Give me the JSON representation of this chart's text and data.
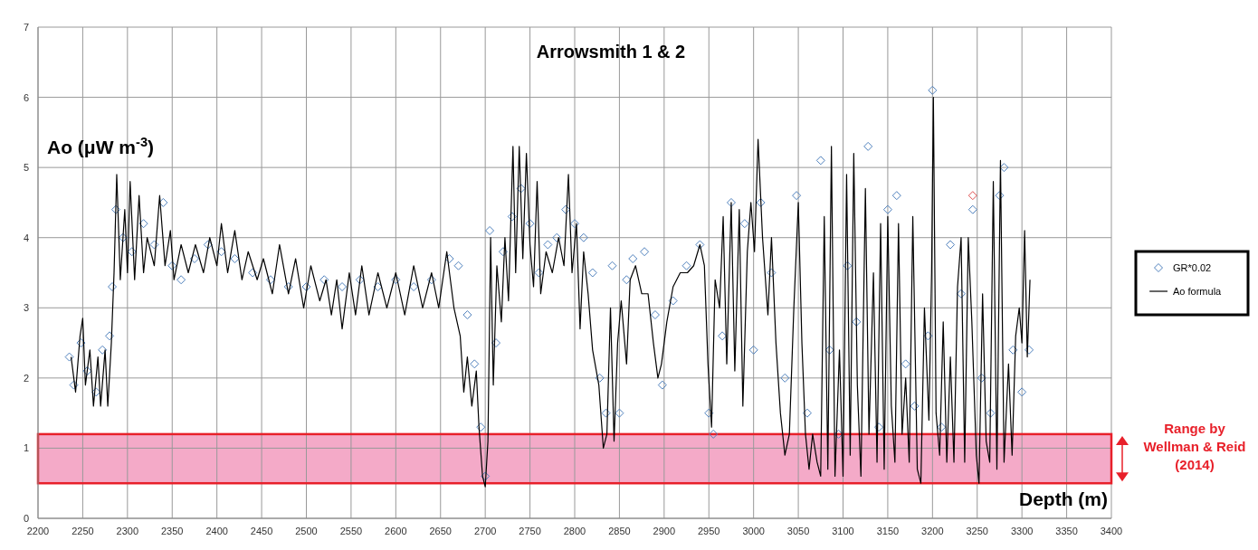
{
  "chart_data": {
    "type": "scatter",
    "title": "Arrowsmith 1 & 2",
    "xlabel": "Depth (m)",
    "ylabel": "Ao (μW m$^{-3}$)",
    "xlim": [
      2200,
      3400
    ],
    "xticks": [
      2200,
      2250,
      2300,
      2350,
      2400,
      2450,
      2500,
      2550,
      2600,
      2650,
      2700,
      2750,
      2800,
      2850,
      2900,
      2950,
      3000,
      3050,
      3100,
      3150,
      3200,
      3250,
      3300,
      3350,
      3400
    ],
    "ylim": [
      0,
      7
    ],
    "yticks": [
      0,
      1,
      2,
      3,
      4,
      5,
      6,
      7
    ],
    "grid": true,
    "legend": "right",
    "bands": [
      {
        "axis": "y",
        "from": 0.5,
        "to": 1.2,
        "label": "Range by Wellman & Reid (2014)",
        "color": "#f4aac8"
      }
    ],
    "series": [
      {
        "name": "GR*0.02",
        "marker": "diamond",
        "color": "#4f81bd",
        "x": [
          2235,
          2240,
          2248,
          2255,
          2265,
          2272,
          2280,
          2283,
          2287,
          2295,
          2305,
          2318,
          2330,
          2340,
          2350,
          2360,
          2375,
          2390,
          2405,
          2420,
          2440,
          2460,
          2480,
          2500,
          2520,
          2540,
          2560,
          2580,
          2600,
          2620,
          2640,
          2660,
          2670,
          2680,
          2688,
          2695,
          2700,
          2705,
          2712,
          2720,
          2730,
          2740,
          2750,
          2760,
          2770,
          2780,
          2790,
          2800,
          2810,
          2820,
          2828,
          2835,
          2842,
          2850,
          2858,
          2865,
          2878,
          2890,
          2898,
          2910,
          2925,
          2940,
          2950,
          2955,
          2965,
          2975,
          2990,
          3000,
          3008,
          3020,
          3035,
          3048,
          3060,
          3075,
          3085,
          3095,
          3105,
          3115,
          3128,
          3140,
          3150,
          3160,
          3170,
          3180,
          3195,
          3200,
          3210,
          3220,
          3232,
          3245,
          3255,
          3265,
          3275,
          3280,
          3290,
          3300,
          3308
        ],
        "values": [
          2.3,
          1.9,
          2.5,
          2.1,
          1.8,
          2.4,
          2.6,
          3.3,
          4.4,
          4.0,
          3.8,
          4.2,
          3.9,
          4.5,
          3.6,
          3.4,
          3.7,
          3.9,
          3.8,
          3.7,
          3.5,
          3.4,
          3.3,
          3.3,
          3.4,
          3.3,
          3.4,
          3.3,
          3.4,
          3.3,
          3.4,
          3.7,
          3.6,
          2.9,
          2.2,
          1.3,
          0.6,
          4.1,
          2.5,
          3.8,
          4.3,
          4.7,
          4.2,
          3.5,
          3.9,
          4.0,
          4.4,
          4.2,
          4.0,
          3.5,
          2.0,
          1.5,
          3.6,
          1.5,
          3.4,
          3.7,
          3.8,
          2.9,
          1.9,
          3.1,
          3.6,
          3.9,
          1.5,
          1.2,
          2.6,
          4.5,
          4.2,
          2.4,
          4.5,
          3.5,
          2.0,
          4.6,
          1.5,
          5.1,
          2.4,
          1.2,
          3.6,
          2.8,
          5.3,
          1.3,
          4.4,
          4.6,
          2.2,
          1.6,
          2.6,
          6.1,
          1.3,
          3.9,
          3.2,
          4.4,
          2.0,
          1.5,
          4.6,
          5.0,
          2.4,
          1.8,
          2.4
        ]
      },
      {
        "marker": "diamond",
        "color": "#e05050",
        "x": [
          3245
        ],
        "values": [
          4.6
        ]
      },
      {
        "name": "Ao formula",
        "type": "line",
        "marker": "none",
        "color": "#000000",
        "x": [
          2237,
          2242,
          2247,
          2250,
          2253,
          2258,
          2262,
          2267,
          2270,
          2275,
          2278,
          2282,
          2285,
          2288,
          2292,
          2297,
          2300,
          2303,
          2308,
          2313,
          2318,
          2322,
          2330,
          2336,
          2342,
          2348,
          2352,
          2360,
          2368,
          2376,
          2385,
          2392,
          2400,
          2405,
          2412,
          2420,
          2428,
          2435,
          2445,
          2452,
          2462,
          2470,
          2480,
          2488,
          2497,
          2505,
          2515,
          2522,
          2528,
          2534,
          2540,
          2548,
          2555,
          2562,
          2570,
          2580,
          2590,
          2600,
          2610,
          2620,
          2630,
          2640,
          2648,
          2657,
          2665,
          2672,
          2676,
          2680,
          2685,
          2690,
          2693,
          2697,
          2700,
          2703,
          2706,
          2709,
          2713,
          2718,
          2722,
          2726,
          2731,
          2734,
          2738,
          2742,
          2746,
          2750,
          2754,
          2758,
          2762,
          2768,
          2775,
          2782,
          2788,
          2793,
          2797,
          2802,
          2806,
          2810,
          2815,
          2820,
          2827,
          2832,
          2836,
          2840,
          2844,
          2848,
          2852,
          2858,
          2862,
          2868,
          2875,
          2882,
          2888,
          2893,
          2897,
          2903,
          2910,
          2918,
          2926,
          2933,
          2940,
          2945,
          2949,
          2953,
          2957,
          2962,
          2966,
          2970,
          2975,
          2979,
          2984,
          2988,
          2993,
          2997,
          3001,
          3005,
          3010,
          3016,
          3020,
          3025,
          3030,
          3035,
          3040,
          3045,
          3050,
          3054,
          3058,
          3062,
          3066,
          3071,
          3075,
          3079,
          3083,
          3087,
          3091,
          3096,
          3100,
          3104,
          3108,
          3112,
          3116,
          3120,
          3125,
          3129,
          3134,
          3138,
          3142,
          3146,
          3150,
          3154,
          3158,
          3162,
          3166,
          3170,
          3174,
          3178,
          3183,
          3187,
          3191,
          3196,
          3199,
          3201,
          3204,
          3208,
          3212,
          3216,
          3220,
          3224,
          3228,
          3232,
          3236,
          3240,
          3244,
          3249,
          3252,
          3256,
          3260,
          3264,
          3268,
          3272,
          3276,
          3280,
          3285,
          3289,
          3293,
          3297,
          3300,
          3303,
          3306,
          3309
        ],
        "values": [
          2.3,
          1.8,
          2.6,
          2.85,
          1.9,
          2.4,
          1.6,
          2.3,
          1.6,
          2.4,
          1.6,
          2.5,
          3.5,
          4.9,
          3.4,
          4.4,
          3.5,
          4.8,
          3.4,
          4.6,
          3.5,
          4.0,
          3.6,
          4.6,
          3.6,
          4.1,
          3.4,
          3.9,
          3.5,
          3.9,
          3.5,
          4.0,
          3.6,
          4.2,
          3.5,
          4.1,
          3.4,
          3.8,
          3.4,
          3.7,
          3.2,
          3.9,
          3.2,
          3.7,
          3.0,
          3.6,
          3.1,
          3.4,
          2.9,
          3.4,
          2.7,
          3.5,
          2.9,
          3.6,
          2.9,
          3.5,
          3.0,
          3.5,
          2.9,
          3.6,
          3.0,
          3.5,
          3.0,
          3.8,
          3.0,
          2.6,
          1.8,
          2.3,
          1.6,
          2.1,
          1.3,
          0.6,
          0.45,
          1.1,
          4.0,
          1.9,
          3.6,
          2.8,
          4.0,
          3.1,
          5.3,
          3.5,
          5.3,
          3.7,
          5.2,
          3.9,
          3.3,
          4.8,
          3.2,
          3.8,
          3.5,
          4.0,
          3.6,
          4.9,
          3.5,
          4.2,
          2.7,
          3.8,
          3.2,
          2.4,
          1.9,
          1.0,
          1.2,
          3.0,
          1.1,
          2.5,
          3.1,
          2.2,
          3.4,
          3.6,
          3.2,
          3.2,
          2.5,
          2.0,
          2.2,
          2.8,
          3.3,
          3.5,
          3.5,
          3.6,
          3.9,
          3.6,
          2.2,
          1.3,
          3.4,
          3.0,
          4.3,
          2.2,
          4.5,
          2.1,
          4.4,
          1.6,
          3.8,
          4.5,
          3.8,
          5.4,
          4.0,
          2.9,
          4.0,
          2.5,
          1.5,
          0.9,
          1.2,
          3.0,
          4.5,
          2.5,
          1.2,
          0.7,
          1.2,
          0.8,
          0.6,
          4.3,
          0.7,
          5.3,
          0.6,
          2.4,
          0.6,
          4.9,
          0.9,
          5.2,
          1.9,
          0.6,
          4.7,
          1.2,
          3.5,
          0.8,
          4.2,
          0.7,
          4.3,
          1.6,
          0.8,
          4.2,
          1.2,
          2.0,
          0.8,
          4.3,
          0.7,
          0.5,
          3.0,
          1.4,
          3.5,
          6.0,
          1.5,
          0.9,
          2.8,
          0.8,
          2.3,
          0.8,
          3.3,
          4.0,
          0.8,
          4.0,
          2.8,
          0.9,
          0.5,
          3.2,
          1.1,
          0.8,
          4.8,
          0.7,
          5.1,
          0.8,
          2.2,
          0.9,
          2.6,
          3.0,
          2.5,
          4.1,
          2.3,
          3.4
        ]
      }
    ]
  }
}
